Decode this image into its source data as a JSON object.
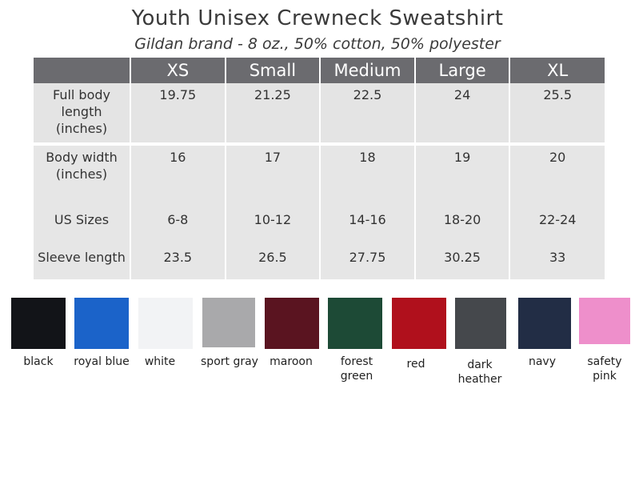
{
  "title": "Youth Unisex Crewneck Sweatshirt",
  "subtitle": "Gildan brand - 8 oz., 50% cotton, 50% polyester",
  "table": {
    "headers": [
      "",
      "XS",
      "Small",
      "Medium",
      "Large",
      "XL"
    ],
    "rows": [
      {
        "label": "Full body length (inches)",
        "values": [
          "19.75",
          "21.25",
          "22.5",
          "24",
          "25.5"
        ]
      },
      {
        "label": "Body width (inches)",
        "values": [
          "16",
          "17",
          "18",
          "19",
          "20"
        ]
      },
      {
        "label": "US Sizes",
        "values": [
          "6-8",
          "10-12",
          "14-16",
          "18-20",
          "22-24"
        ]
      },
      {
        "label": "Sleeve length",
        "values": [
          "23.5",
          "26.5",
          "27.75",
          "30.25",
          "33"
        ]
      }
    ]
  },
  "swatches": [
    {
      "label": "black",
      "color": "#121418"
    },
    {
      "label": "royal blue",
      "color": "#1b63c9"
    },
    {
      "label": "white",
      "color": "#f2f3f5"
    },
    {
      "label": "sport gray",
      "color": "#a9a9ab"
    },
    {
      "label": "maroon",
      "color": "#5a1420"
    },
    {
      "label": "forest green",
      "color": "#1d4a36"
    },
    {
      "label": "red",
      "color": "#b0101c"
    },
    {
      "label": "dark heather",
      "color": "#45484c"
    },
    {
      "label": "navy",
      "color": "#222d45"
    },
    {
      "label": "safety pink",
      "color": "#ee8fcb"
    }
  ]
}
